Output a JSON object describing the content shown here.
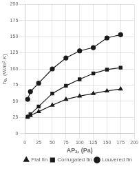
{
  "chart_data": {
    "type": "line",
    "xlabel": "APₐ, (Pa)",
    "ylabel": "hₐ, (W/m².K)",
    "x": [
      5,
      10,
      25,
      50,
      75,
      100,
      125,
      150,
      175
    ],
    "series": [
      {
        "name": "Flat fin",
        "color": "#1a1a1a",
        "marker": "triangle",
        "values": [
          26,
          28,
          34,
          44,
          53,
          58,
          62,
          66,
          69
        ]
      },
      {
        "name": "Corrugated fin",
        "color": "#1a1a1a",
        "marker": "square",
        "values": [
          26,
          30,
          42,
          62,
          74,
          84,
          93,
          99,
          102
        ]
      },
      {
        "name": "Louvered fin",
        "color": "#1a1a1a",
        "marker": "circle",
        "values": [
          53,
          65,
          78,
          100,
          117,
          128,
          133,
          148,
          153
        ]
      }
    ],
    "xlim": [
      0,
      200
    ],
    "ylim": [
      0,
      200
    ],
    "xticks": [
      0,
      25,
      50,
      75,
      100,
      125,
      150,
      175,
      200
    ],
    "yticks": [
      0,
      25,
      50,
      75,
      100,
      125,
      150,
      175,
      200
    ],
    "grid": true,
    "legend": "lower right"
  }
}
